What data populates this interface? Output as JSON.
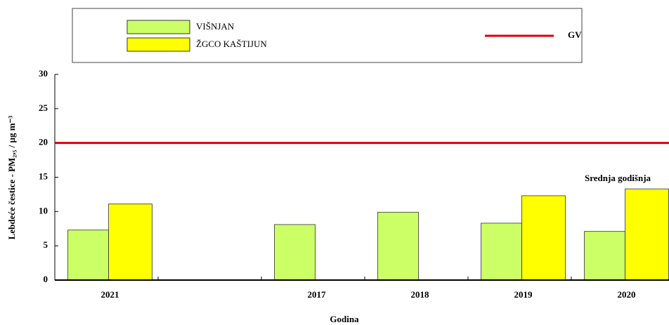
{
  "chart_data": {
    "type": "bar",
    "categories": [
      "2021",
      null,
      "2017",
      "2018",
      "2019",
      "2020"
    ],
    "series": [
      {
        "name": "VIŠNJAN",
        "color": "#ccff66",
        "values": [
          7.3,
          null,
          8.1,
          9.9,
          8.3,
          7.1
        ]
      },
      {
        "name": "ŽGCO KAŠTIJUN",
        "color": "#ffff00",
        "values": [
          11.1,
          null,
          null,
          null,
          12.3,
          13.3
        ]
      }
    ],
    "reference_line": {
      "name": "GV",
      "value": 20,
      "color": "#e00000"
    },
    "annotation": "Srednja godišnja",
    "x_label": "Godina",
    "y_label": "Lebdeće čestice - PM₂,₅ / µg m⁻³",
    "ylim": [
      0,
      30
    ],
    "yticks": [
      0,
      5,
      10,
      15,
      20,
      25,
      30
    ],
    "legend": "top"
  }
}
